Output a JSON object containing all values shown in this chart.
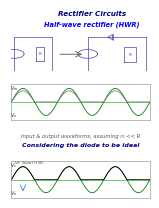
{
  "title": "Rectifier Circuits",
  "subtitle": "Half-wave rectifier (HWR)",
  "label_input_output": "Input & output waveforms, assuming r₀ << R",
  "label_ideal": "Considering the diode to be ideal",
  "background_color": "#ffffff",
  "grid_color": "#cccccc",
  "sine_color": "#008000",
  "halfwave_color": "#808080",
  "halfwave2_color": "#000000",
  "title_color": "#000080",
  "subtitle_color": "#0000ff",
  "text_color": "#555555",
  "circuit_color": "#4444aa",
  "n_points": 1000,
  "periods": 3,
  "amplitude": 1.0
}
